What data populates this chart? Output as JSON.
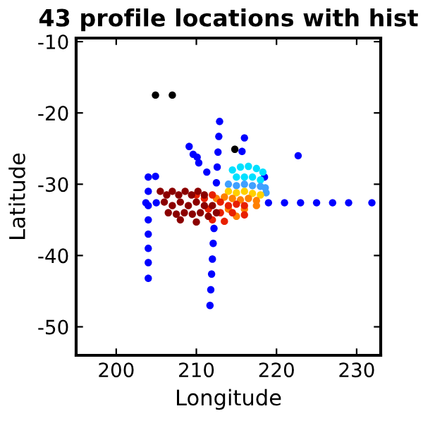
{
  "chart_data": {
    "type": "scatter",
    "title": "43 profile locations with hist",
    "xlabel": "Longitude",
    "ylabel": "Latitude",
    "xlim": [
      195,
      233
    ],
    "ylim": [
      -54,
      -9.5
    ],
    "xticks": [
      200,
      210,
      220,
      230
    ],
    "yticks": [
      -50,
      -40,
      -30,
      -20,
      -10
    ],
    "grid": false,
    "legend": false,
    "marker": "circle",
    "series": [
      {
        "color": "#0000ff",
        "x": [
          203.7,
          205,
          219,
          221,
          223,
          225,
          227,
          229,
          231.9,
          204,
          204,
          204,
          204,
          204,
          204,
          204,
          204,
          212.9,
          212.8,
          212.7,
          212.6,
          212.5,
          212.2,
          212.1,
          212,
          211.9,
          211.8,
          211.7,
          209.1,
          209.6,
          210.1,
          210.3,
          216,
          215.7,
          222.7,
          211.3,
          204.9,
          218.5
        ],
        "values": [
          -32.6,
          -32.6,
          -32.6,
          -32.6,
          -32.6,
          -32.6,
          -32.6,
          -32.6,
          -32.6,
          -29,
          -31,
          -33,
          -35,
          -37,
          -39,
          -41,
          -43.2,
          -21.2,
          -23.3,
          -25.5,
          -27.6,
          -29.8,
          -36.2,
          -38.3,
          -40.5,
          -42.6,
          -44.8,
          -47,
          -24.7,
          -25.8,
          -26.2,
          -27,
          -23.5,
          -25.4,
          -26,
          -28.3,
          -28.9,
          -29
        ]
      },
      {
        "color": "#000000",
        "x": [
          204.9,
          207,
          214.8
        ],
        "values": [
          -17.5,
          -17.5,
          -25.1
        ]
      },
      {
        "color": "#00e0ff",
        "x": [
          214.5,
          215.5,
          216.5,
          217.5,
          218.3,
          215,
          216,
          217,
          218
        ],
        "values": [
          -28,
          -27.6,
          -27.5,
          -27.8,
          -28.3,
          -29,
          -29,
          -29,
          -29.4
        ]
      },
      {
        "color": "#40a0ff",
        "x": [
          214,
          215,
          216,
          217,
          218,
          218.6,
          218.7
        ],
        "values": [
          -30,
          -30.2,
          -30,
          -30.2,
          -30.3,
          -30.5,
          -31.2
        ]
      },
      {
        "color": "#ffd000",
        "x": [
          214,
          215,
          216,
          217,
          218
        ],
        "values": [
          -31,
          -31.2,
          -31,
          -31.3,
          -31.5
        ]
      },
      {
        "color": "#ff8000",
        "x": [
          212.5,
          213.5,
          214.5,
          215.5,
          216.5,
          217.5,
          214,
          216,
          217.5,
          215
        ],
        "values": [
          -32,
          -31.8,
          -32,
          -32.2,
          -32,
          -32.3,
          -33.5,
          -33.5,
          -33,
          -34.5
        ]
      },
      {
        "color": "#e82000",
        "x": [
          210,
          211,
          212,
          213,
          214,
          215,
          216,
          211.5,
          213,
          214.5,
          216,
          212,
          213.5
        ],
        "values": [
          -31.5,
          -32,
          -31.5,
          -32.5,
          -33,
          -32.8,
          -33,
          -33.5,
          -34,
          -34,
          -34.3,
          -35,
          -35.2
        ]
      },
      {
        "color": "#8b0000",
        "x": [
          205.5,
          206.3,
          207,
          207.8,
          208.6,
          209.4,
          210.2,
          211,
          206,
          207,
          208,
          209,
          210,
          211,
          212,
          206.5,
          207.5,
          208.5,
          209.5,
          210.5,
          211.5,
          208,
          210,
          212.5
        ],
        "values": [
          -31,
          -31.5,
          -31,
          -31.5,
          -31,
          -31.5,
          -31,
          -31.5,
          -32.5,
          -33,
          -32.5,
          -33,
          -32.5,
          -33,
          -33,
          -34,
          -34.2,
          -34,
          -34.2,
          -34,
          -34.5,
          -35,
          -35.3,
          -34
        ]
      }
    ]
  }
}
